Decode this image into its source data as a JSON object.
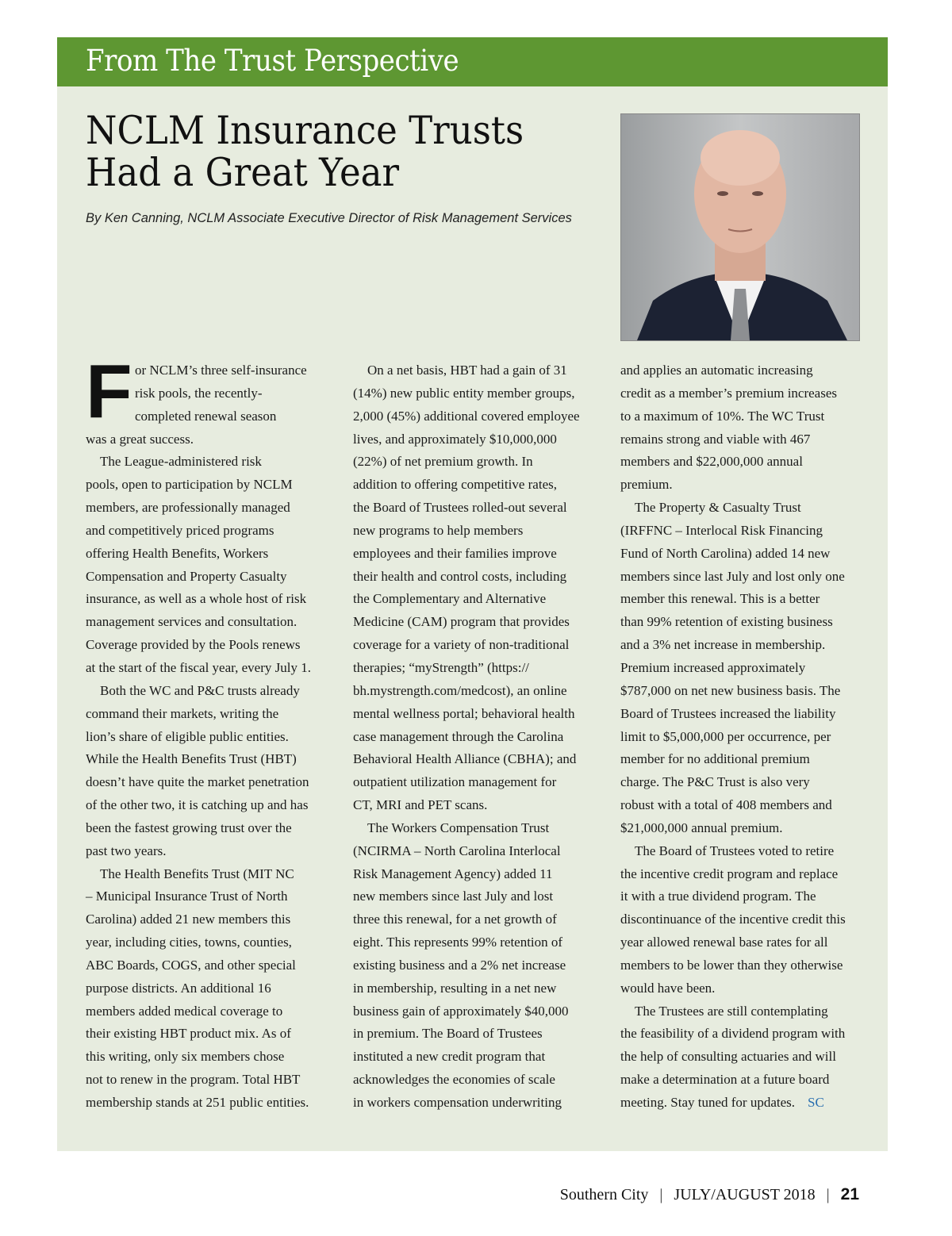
{
  "colors": {
    "banner": "#5e9732",
    "panel": "#e7ecdf",
    "end_mark": "#2a6fb0"
  },
  "banner": "From The Trust Perspective",
  "title_lines": [
    "NCLM Insurance Trusts",
    "Had a Great Year"
  ],
  "byline": "By Ken Canning, NCLM Associate Executive Director of Risk Management Services",
  "photo": {
    "subject": "portrait photo"
  },
  "drop_cap": "F",
  "columns": [
    {
      "paragraphs": [
        {
          "style": "dropcap",
          "lines": [
            "or NCLM’s three self-insurance",
            "risk pools, the recently-",
            "completed renewal season",
            "was a great success."
          ]
        },
        {
          "style": "indent",
          "lines": [
            "The League-administered risk",
            "pools, open to participation by NCLM",
            "members, are professionally managed",
            "and competitively priced programs",
            "offering Health Benefits, Workers",
            "Compensation and Property Casualty",
            "insurance, as well as a whole host of risk",
            "management services and consultation.",
            "Coverage provided by the Pools renews",
            "at the start of the fiscal year, every July 1."
          ]
        },
        {
          "style": "indent",
          "lines": [
            "Both the WC and P&C trusts already",
            "command their markets, writing the",
            "lion’s share of eligible public entities.",
            "While the Health Benefits Trust (HBT)",
            "doesn’t have quite the market penetration",
            "of the other two, it is catching up and has",
            "been the fastest growing trust over the",
            "past two years."
          ]
        },
        {
          "style": "indent",
          "lines": [
            "The Health Benefits Trust (MIT NC",
            "– Municipal Insurance Trust of North",
            "Carolina) added 21 new members this",
            "year, including cities, towns, counties,",
            "ABC Boards, COGS, and other special",
            "purpose districts. An additional 16",
            "members added medical coverage to",
            "their existing HBT product mix.  As of",
            "this writing, only six members chose",
            "not to renew in the program. Total HBT",
            "membership stands at 251 public entities."
          ]
        }
      ]
    },
    {
      "paragraphs": [
        {
          "style": "indent",
          "lines": [
            "On a net basis, HBT had a gain of 31",
            "(14%) new public entity member groups,",
            "2,000 (45%) additional covered employee",
            "lives, and approximately $10,000,000",
            "(22%) of net premium growth. In",
            "addition to offering competitive rates,",
            "the Board of Trustees rolled-out several",
            "new programs to help members",
            "employees and their families improve",
            "their health and control costs, including",
            "the Complementary and Alternative",
            "Medicine (CAM) program that provides",
            "coverage for a variety of non-traditional",
            "therapies; “myStrength” (https://",
            "bh.mystrength.com/medcost), an online",
            "mental wellness portal; behavioral health",
            "case management through the Carolina",
            "Behavioral Health Alliance (CBHA); and",
            "outpatient utilization management for",
            "CT, MRI and PET scans."
          ]
        },
        {
          "style": "indent",
          "lines": [
            "The Workers Compensation Trust",
            "(NCIRMA – North Carolina Interlocal",
            "Risk Management Agency) added 11",
            "new members since last July and lost",
            "three this renewal, for a net growth of",
            "eight. This represents 99% retention of",
            "existing business and a 2% net increase",
            "in membership, resulting in a net new",
            "business gain of approximately $40,000",
            "in premium. The Board of Trustees",
            "instituted a new credit program that",
            "acknowledges the economies of scale",
            "in workers compensation underwriting"
          ]
        }
      ]
    },
    {
      "paragraphs": [
        {
          "style": "plain",
          "lines": [
            "and applies an automatic increasing",
            "credit as a member’s premium increases",
            "to a maximum of 10%. The WC Trust",
            "remains strong and viable with 467",
            "members and $22,000,000 annual",
            "premium."
          ]
        },
        {
          "style": "indent",
          "lines": [
            "The Property & Casualty Trust",
            "(IRFFNC – Interlocal Risk Financing",
            "Fund of North Carolina) added 14 new",
            "members since last July and lost only one",
            "member this renewal. This is a better",
            "than 99% retention of existing business",
            "and a 3% net increase in membership.",
            "Premium increased approximately",
            "$787,000 on net new business basis. The",
            "Board of Trustees increased the liability",
            "limit to $5,000,000 per occurrence, per",
            "member for no additional premium",
            "charge. The P&C Trust is also very",
            "robust with a total of 408 members and",
            "$21,000,000 annual premium."
          ]
        },
        {
          "style": "indent",
          "lines": [
            "The Board of Trustees voted to retire",
            "the incentive credit program and replace",
            "it with a true dividend program. The",
            "discontinuance of the incentive credit this",
            "year allowed renewal base rates for all",
            "members to be lower than they otherwise",
            "would have been."
          ]
        },
        {
          "style": "indent",
          "lines": [
            "The Trustees are still contemplating",
            "the feasibility of a dividend program with",
            "the help of consulting actuaries and will",
            "make a determination at a future board",
            "meeting. Stay tuned for updates."
          ]
        }
      ]
    }
  ],
  "end_mark": "SC",
  "footer": {
    "publication": "Southern City",
    "issue": "JULY/AUGUST 2018",
    "page": "21",
    "separator": "|"
  }
}
